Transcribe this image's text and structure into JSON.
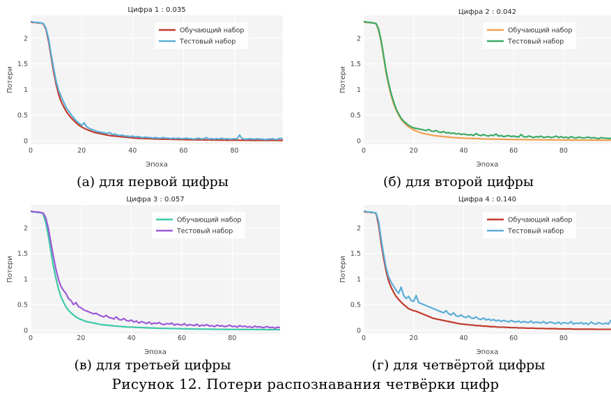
{
  "figure_caption": "Рисунок 12. Потери распознавания четвёрки цифр",
  "chart_data": [
    {
      "type": "line",
      "title": "Цифра 1 : 0.035",
      "caption": "(а) для первой цифры",
      "xlabel": "Эпоха",
      "ylabel": "Потери",
      "xlim": [
        0,
        99
      ],
      "ylim": [
        -0.07,
        2.45
      ],
      "x_ticks": [
        0,
        20,
        40,
        60,
        80
      ],
      "y_ticks": [
        0,
        0.5,
        1,
        1.5,
        2
      ],
      "y_tick_labels": [
        "0",
        "0.5",
        "1",
        "1.5",
        "2"
      ],
      "legend_position": "top-right",
      "series": [
        {
          "name": "Обучающий набор",
          "color": "#c0392b",
          "values": [
            2.32,
            2.31,
            2.31,
            2.3,
            2.3,
            2.28,
            2.18,
            1.95,
            1.65,
            1.35,
            1.1,
            0.9,
            0.76,
            0.66,
            0.57,
            0.5,
            0.44,
            0.39,
            0.34,
            0.3,
            0.27,
            0.24,
            0.22,
            0.2,
            0.18,
            0.16,
            0.15,
            0.14,
            0.13,
            0.12,
            0.11,
            0.1,
            0.095,
            0.09,
            0.085,
            0.08,
            0.075,
            0.07,
            0.065,
            0.06,
            0.055,
            0.05,
            0.048,
            0.046,
            0.044,
            0.042,
            0.04,
            0.038,
            0.036,
            0.034,
            0.032,
            0.03,
            0.029,
            0.028,
            0.027,
            0.026,
            0.025,
            0.024,
            0.023,
            0.022,
            0.021,
            0.02,
            0.019,
            0.018,
            0.017,
            0.016,
            0.016,
            0.015,
            0.015,
            0.014,
            0.014,
            0.013,
            0.013,
            0.012,
            0.012,
            0.011,
            0.011,
            0.01,
            0.01,
            0.01,
            0.009,
            0.009,
            0.009,
            0.008,
            0.008,
            0.008,
            0.008,
            0.007,
            0.007,
            0.007,
            0.007,
            0.006,
            0.006,
            0.006,
            0.006,
            0.006,
            0.005,
            0.005,
            0.005,
            0.005
          ]
        },
        {
          "name": "Тестовый набор",
          "color": "#5aaed8",
          "values": [
            2.33,
            2.32,
            2.31,
            2.31,
            2.3,
            2.29,
            2.2,
            2.0,
            1.7,
            1.42,
            1.16,
            0.98,
            0.86,
            0.75,
            0.64,
            0.57,
            0.5,
            0.44,
            0.38,
            0.34,
            0.3,
            0.35,
            0.27,
            0.24,
            0.22,
            0.2,
            0.18,
            0.17,
            0.16,
            0.15,
            0.14,
            0.16,
            0.12,
            0.13,
            0.11,
            0.1,
            0.11,
            0.09,
            0.09,
            0.08,
            0.09,
            0.07,
            0.08,
            0.07,
            0.06,
            0.07,
            0.06,
            0.06,
            0.05,
            0.06,
            0.05,
            0.05,
            0.06,
            0.05,
            0.05,
            0.04,
            0.05,
            0.04,
            0.05,
            0.04,
            0.04,
            0.05,
            0.04,
            0.04,
            0.03,
            0.04,
            0.05,
            0.03,
            0.04,
            0.06,
            0.03,
            0.04,
            0.03,
            0.04,
            0.03,
            0.05,
            0.03,
            0.04,
            0.03,
            0.03,
            0.04,
            0.03,
            0.11,
            0.04,
            0.03,
            0.03,
            0.04,
            0.03,
            0.03,
            0.04,
            0.03,
            0.03,
            0.02,
            0.03,
            0.03,
            0.04,
            0.02,
            0.03,
            0.05,
            0.03
          ]
        }
      ]
    },
    {
      "type": "line",
      "title": "Цифра 2 : 0.042",
      "caption": "(б) для второй цифры",
      "xlabel": "Эпоха",
      "ylabel": "Потери",
      "xlim": [
        0,
        99
      ],
      "ylim": [
        -0.07,
        2.45
      ],
      "x_ticks": [
        0,
        20,
        40,
        60,
        80
      ],
      "y_ticks": [
        0,
        0.5,
        1,
        1.5,
        2
      ],
      "y_tick_labels": [
        "0",
        "0.5",
        "1",
        "1.5",
        "2"
      ],
      "legend_position": "top-right",
      "series": [
        {
          "name": "Обучающий набор",
          "color": "#f0a050",
          "values": [
            2.32,
            2.31,
            2.31,
            2.3,
            2.3,
            2.28,
            2.15,
            1.92,
            1.62,
            1.32,
            1.08,
            0.88,
            0.72,
            0.6,
            0.5,
            0.42,
            0.36,
            0.31,
            0.27,
            0.24,
            0.21,
            0.19,
            0.17,
            0.15,
            0.14,
            0.13,
            0.12,
            0.11,
            0.1,
            0.095,
            0.09,
            0.085,
            0.08,
            0.075,
            0.07,
            0.065,
            0.06,
            0.058,
            0.055,
            0.052,
            0.05,
            0.048,
            0.046,
            0.044,
            0.042,
            0.04,
            0.038,
            0.036,
            0.034,
            0.033,
            0.032,
            0.031,
            0.03,
            0.029,
            0.028,
            0.027,
            0.026,
            0.025,
            0.024,
            0.023,
            0.022,
            0.022,
            0.021,
            0.021,
            0.02,
            0.02,
            0.019,
            0.019,
            0.018,
            0.018,
            0.017,
            0.017,
            0.016,
            0.016,
            0.015,
            0.015,
            0.015,
            0.014,
            0.014,
            0.014,
            0.013,
            0.013,
            0.013,
            0.012,
            0.012,
            0.012,
            0.012,
            0.011,
            0.011,
            0.011,
            0.011,
            0.01,
            0.01,
            0.01,
            0.01,
            0.01,
            0.01,
            0.009,
            0.009,
            0.009
          ]
        },
        {
          "name": "Тестовый набор",
          "color": "#3aaa66",
          "values": [
            2.33,
            2.32,
            2.31,
            2.31,
            2.3,
            2.29,
            2.18,
            1.96,
            1.66,
            1.36,
            1.12,
            0.92,
            0.76,
            0.62,
            0.52,
            0.44,
            0.38,
            0.34,
            0.3,
            0.27,
            0.25,
            0.24,
            0.23,
            0.22,
            0.21,
            0.2,
            0.22,
            0.19,
            0.18,
            0.2,
            0.17,
            0.16,
            0.18,
            0.15,
            0.16,
            0.14,
            0.15,
            0.13,
            0.14,
            0.12,
            0.13,
            0.12,
            0.11,
            0.12,
            0.1,
            0.14,
            0.11,
            0.1,
            0.12,
            0.1,
            0.09,
            0.11,
            0.1,
            0.13,
            0.09,
            0.1,
            0.08,
            0.09,
            0.1,
            0.08,
            0.09,
            0.08,
            0.07,
            0.12,
            0.08,
            0.07,
            0.09,
            0.08,
            0.06,
            0.08,
            0.07,
            0.09,
            0.06,
            0.07,
            0.08,
            0.06,
            0.07,
            0.09,
            0.06,
            0.08,
            0.06,
            0.07,
            0.05,
            0.08,
            0.06,
            0.05,
            0.07,
            0.06,
            0.05,
            0.06,
            0.07,
            0.05,
            0.06,
            0.05,
            0.04,
            0.06,
            0.05,
            0.05,
            0.04,
            0.05
          ]
        }
      ]
    },
    {
      "type": "line",
      "title": "Цифра 3 : 0.057",
      "caption": "(в) для третьей цифры",
      "xlabel": "Эпоха",
      "ylabel": "Потери",
      "xlim": [
        0,
        99
      ],
      "ylim": [
        -0.07,
        2.45
      ],
      "x_ticks": [
        0,
        20,
        40,
        60,
        80
      ],
      "y_ticks": [
        0,
        0.5,
        1,
        1.5,
        2
      ],
      "y_tick_labels": [
        "0",
        "0.5",
        "1",
        "1.5",
        "2"
      ],
      "legend_position": "top-right",
      "series": [
        {
          "name": "Обучающий набор",
          "color": "#3cc8a8",
          "values": [
            2.32,
            2.31,
            2.31,
            2.3,
            2.3,
            2.27,
            2.1,
            1.85,
            1.55,
            1.26,
            1.02,
            0.82,
            0.66,
            0.55,
            0.46,
            0.39,
            0.34,
            0.3,
            0.26,
            0.23,
            0.21,
            0.19,
            0.17,
            0.16,
            0.15,
            0.14,
            0.13,
            0.12,
            0.11,
            0.105,
            0.1,
            0.095,
            0.09,
            0.085,
            0.08,
            0.076,
            0.072,
            0.068,
            0.065,
            0.062,
            0.06,
            0.058,
            0.056,
            0.054,
            0.052,
            0.05,
            0.048,
            0.046,
            0.044,
            0.042,
            0.04,
            0.038,
            0.037,
            0.036,
            0.035,
            0.034,
            0.033,
            0.032,
            0.031,
            0.03,
            0.029,
            0.028,
            0.027,
            0.026,
            0.025,
            0.024,
            0.023,
            0.022,
            0.022,
            0.021,
            0.021,
            0.02,
            0.02,
            0.019,
            0.019,
            0.018,
            0.018,
            0.017,
            0.017,
            0.017,
            0.016,
            0.016,
            0.016,
            0.015,
            0.015,
            0.015,
            0.014,
            0.014,
            0.014,
            0.014,
            0.013,
            0.013,
            0.013,
            0.013,
            0.012,
            0.012,
            0.012,
            0.012,
            0.012,
            0.011
          ]
        },
        {
          "name": "Тестовый набор",
          "color": "#9b59d6",
          "values": [
            2.33,
            2.32,
            2.31,
            2.31,
            2.3,
            2.29,
            2.2,
            2.0,
            1.72,
            1.45,
            1.2,
            1.0,
            0.86,
            0.78,
            0.72,
            0.62,
            0.58,
            0.5,
            0.54,
            0.46,
            0.44,
            0.4,
            0.38,
            0.36,
            0.34,
            0.32,
            0.33,
            0.3,
            0.28,
            0.26,
            0.29,
            0.25,
            0.24,
            0.22,
            0.26,
            0.21,
            0.2,
            0.23,
            0.19,
            0.18,
            0.2,
            0.16,
            0.18,
            0.14,
            0.17,
            0.15,
            0.13,
            0.16,
            0.12,
            0.14,
            0.13,
            0.15,
            0.12,
            0.11,
            0.13,
            0.12,
            0.14,
            0.1,
            0.12,
            0.11,
            0.1,
            0.13,
            0.09,
            0.11,
            0.1,
            0.09,
            0.12,
            0.08,
            0.1,
            0.09,
            0.11,
            0.08,
            0.09,
            0.07,
            0.1,
            0.08,
            0.09,
            0.07,
            0.08,
            0.1,
            0.07,
            0.08,
            0.06,
            0.09,
            0.07,
            0.08,
            0.06,
            0.07,
            0.05,
            0.08,
            0.06,
            0.07,
            0.05,
            0.06,
            0.07,
            0.05,
            0.06,
            0.04,
            0.06,
            0.05
          ]
        }
      ]
    },
    {
      "type": "line",
      "title": "Цифра 4 : 0.140",
      "caption": "(г) для четвёртой цифры",
      "xlabel": "Эпоха",
      "ylabel": "Потери",
      "xlim": [
        0,
        99
      ],
      "ylim": [
        -0.07,
        2.45
      ],
      "x_ticks": [
        0,
        20,
        40,
        60,
        80
      ],
      "y_ticks": [
        0,
        0.5,
        1,
        1.5,
        2
      ],
      "y_tick_labels": [
        "0",
        "0.5",
        "1",
        "1.5",
        "2"
      ],
      "legend_position": "top-right",
      "series": [
        {
          "name": "Обучающий набор",
          "color": "#c0392b",
          "values": [
            2.32,
            2.31,
            2.31,
            2.3,
            2.3,
            2.28,
            2.05,
            1.7,
            1.4,
            1.15,
            0.96,
            0.84,
            0.74,
            0.66,
            0.6,
            0.55,
            0.5,
            0.46,
            0.42,
            0.4,
            0.38,
            0.37,
            0.35,
            0.33,
            0.31,
            0.29,
            0.27,
            0.25,
            0.23,
            0.22,
            0.21,
            0.2,
            0.19,
            0.18,
            0.17,
            0.16,
            0.15,
            0.14,
            0.13,
            0.12,
            0.12,
            0.11,
            0.11,
            0.1,
            0.1,
            0.09,
            0.09,
            0.085,
            0.08,
            0.08,
            0.075,
            0.07,
            0.07,
            0.065,
            0.06,
            0.06,
            0.06,
            0.055,
            0.055,
            0.05,
            0.05,
            0.05,
            0.045,
            0.045,
            0.045,
            0.04,
            0.04,
            0.04,
            0.04,
            0.035,
            0.035,
            0.035,
            0.035,
            0.03,
            0.03,
            0.03,
            0.03,
            0.03,
            0.025,
            0.025,
            0.025,
            0.025,
            0.025,
            0.025,
            0.02,
            0.02,
            0.02,
            0.02,
            0.02,
            0.02,
            0.02,
            0.02,
            0.02,
            0.018,
            0.018,
            0.018,
            0.018,
            0.018,
            0.018,
            0.018
          ]
        },
        {
          "name": "Тестовый набор",
          "color": "#5aaed8",
          "values": [
            2.33,
            2.32,
            2.31,
            2.31,
            2.3,
            2.29,
            2.12,
            1.78,
            1.48,
            1.22,
            1.04,
            0.94,
            0.86,
            0.78,
            0.72,
            0.84,
            0.68,
            0.62,
            0.66,
            0.58,
            0.56,
            0.68,
            0.54,
            0.52,
            0.5,
            0.48,
            0.46,
            0.44,
            0.42,
            0.4,
            0.38,
            0.36,
            0.34,
            0.38,
            0.32,
            0.3,
            0.34,
            0.28,
            0.27,
            0.3,
            0.26,
            0.25,
            0.28,
            0.24,
            0.23,
            0.26,
            0.22,
            0.21,
            0.24,
            0.2,
            0.22,
            0.19,
            0.21,
            0.18,
            0.2,
            0.17,
            0.19,
            0.18,
            0.16,
            0.19,
            0.17,
            0.16,
            0.18,
            0.15,
            0.17,
            0.16,
            0.15,
            0.18,
            0.14,
            0.16,
            0.15,
            0.14,
            0.17,
            0.13,
            0.15,
            0.16,
            0.14,
            0.13,
            0.16,
            0.12,
            0.15,
            0.14,
            0.13,
            0.17,
            0.12,
            0.14,
            0.13,
            0.15,
            0.12,
            0.14,
            0.11,
            0.16,
            0.13,
            0.12,
            0.15,
            0.13,
            0.12,
            0.14,
            0.12,
            0.2
          ]
        }
      ]
    }
  ]
}
